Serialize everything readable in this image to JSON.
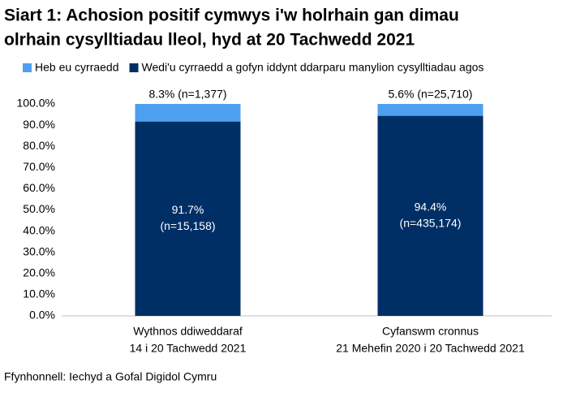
{
  "chart_data": {
    "type": "stacked-bar",
    "title": [
      "Siart 1: Achosion positif cymwys i'w holrhain gan dimau",
      "olrhain cysylltiadau lleol, hyd at 20 Tachwedd 2021"
    ],
    "categories": [
      [
        "Wythnos ddiweddaraf",
        "14 i 20 Tachwedd 2021"
      ],
      [
        "Cyfanswm cronnus",
        "21 Mehefin 2020 i 20 Tachwedd 2021"
      ]
    ],
    "series": [
      {
        "name": "Heb eu cyrraedd",
        "color": "#4da0f0",
        "values": [
          8.3,
          5.6
        ],
        "value_labels": [
          [
            "8.3% (n=1,377)"
          ],
          [
            "5.6% (n=25,710)"
          ]
        ]
      },
      {
        "name": "Wedi'u cyrraedd a gofyn iddynt ddarparu manylion cysylltiadau agos",
        "color": "#002f66",
        "values": [
          91.7,
          94.4
        ],
        "value_labels": [
          [
            "91.7%",
            "(n=15,158)"
          ],
          [
            "94.4%",
            "(n=435,174)"
          ]
        ]
      }
    ],
    "ylim": [
      0,
      100
    ],
    "yticks": [
      {
        "value": 0,
        "label": "0.0%"
      },
      {
        "value": 10,
        "label": "10.0%"
      },
      {
        "value": 20,
        "label": "20.0%"
      },
      {
        "value": 30,
        "label": "30.0%"
      },
      {
        "value": 40,
        "label": "40.0%"
      },
      {
        "value": 50,
        "label": "50.0%"
      },
      {
        "value": 60,
        "label": "60.0%"
      },
      {
        "value": 70,
        "label": "70.0%"
      },
      {
        "value": 80,
        "label": "80.0%"
      },
      {
        "value": 90,
        "label": "90.0%"
      },
      {
        "value": 100,
        "label": "100.0%"
      }
    ],
    "source": "Ffynhonnell: Iechyd a Gofal Digidol Cymru"
  }
}
